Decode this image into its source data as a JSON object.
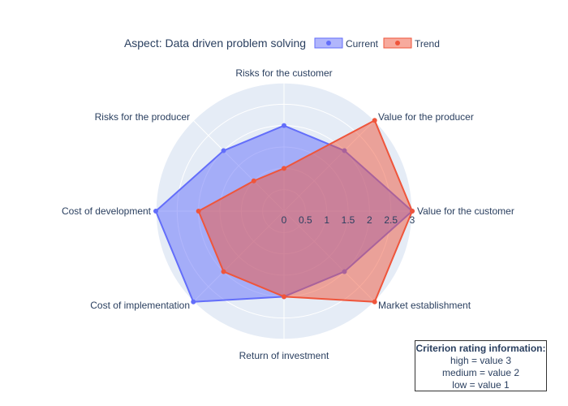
{
  "chart_data": {
    "type": "radar",
    "title": "Aspect: Data driven problem solving",
    "categories": [
      "Value for the customer",
      "Value for the producer",
      "Risks for the customer",
      "Risks for the producer",
      "Cost of development",
      "Cost of implementation",
      "Return of investment",
      "Market establishment"
    ],
    "radial_range": [
      0,
      3
    ],
    "radial_ticks": [
      "0",
      "0.5",
      "1",
      "1.5",
      "2",
      "2.5",
      "3"
    ],
    "legend_position": "top",
    "series": [
      {
        "name": "Current",
        "color": "#636efa",
        "values": [
          3,
          2,
          2,
          2,
          3,
          3,
          2,
          2
        ]
      },
      {
        "name": "Trend",
        "color": "#ef553b",
        "values": [
          3,
          3,
          1,
          1,
          2,
          2,
          2,
          3
        ]
      }
    ]
  },
  "info_box": {
    "title": "Criterion rating information:",
    "lines": [
      "high = value 3",
      "medium = value 2",
      "low = value 1"
    ]
  }
}
